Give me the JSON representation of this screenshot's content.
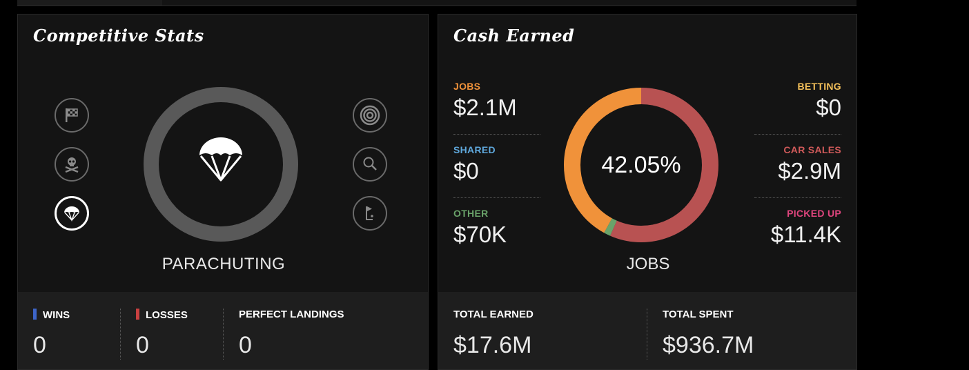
{
  "colors": {
    "jobs": "#f0923a",
    "shared": "#5fa8dc",
    "other": "#6aa36a",
    "betting": "#f5c15a",
    "car_sales": "#d05a5a",
    "picked_up": "#e0457e",
    "wins": "#3d65c9",
    "losses": "#c94040"
  },
  "stats": {
    "title": "Competitive Stats",
    "selected_label": "PARACHUTING",
    "icons_left": [
      "checkered-flag-icon",
      "skull-crossbones-icon",
      "parachute-icon"
    ],
    "icons_right": [
      "target-icon",
      "tennis-racket-icon",
      "golf-flag-icon"
    ],
    "footer": {
      "wins_label": "WINS",
      "wins_value": "0",
      "losses_label": "LOSSES",
      "losses_value": "0",
      "landings_label": "PERFECT LANDINGS",
      "landings_value": "0"
    }
  },
  "cash": {
    "title": "Cash Earned",
    "center_percent": "42.05%",
    "center_label": "JOBS",
    "left_items": [
      {
        "label": "JOBS",
        "value": "$2.1M"
      },
      {
        "label": "SHARED",
        "value": "$0"
      },
      {
        "label": "OTHER",
        "value": "$70K"
      }
    ],
    "right_items": [
      {
        "label": "BETTING",
        "value": "$0"
      },
      {
        "label": "CAR SALES",
        "value": "$2.9M"
      },
      {
        "label": "PICKED UP",
        "value": "$11.4K"
      }
    ],
    "donut_share": {
      "jobs": 0.4205,
      "other": 0.014,
      "car_sales": 0.5655
    },
    "footer": {
      "earned_label": "TOTAL EARNED",
      "earned_value": "$17.6M",
      "spent_label": "TOTAL SPENT",
      "spent_value": "$936.7M"
    }
  }
}
